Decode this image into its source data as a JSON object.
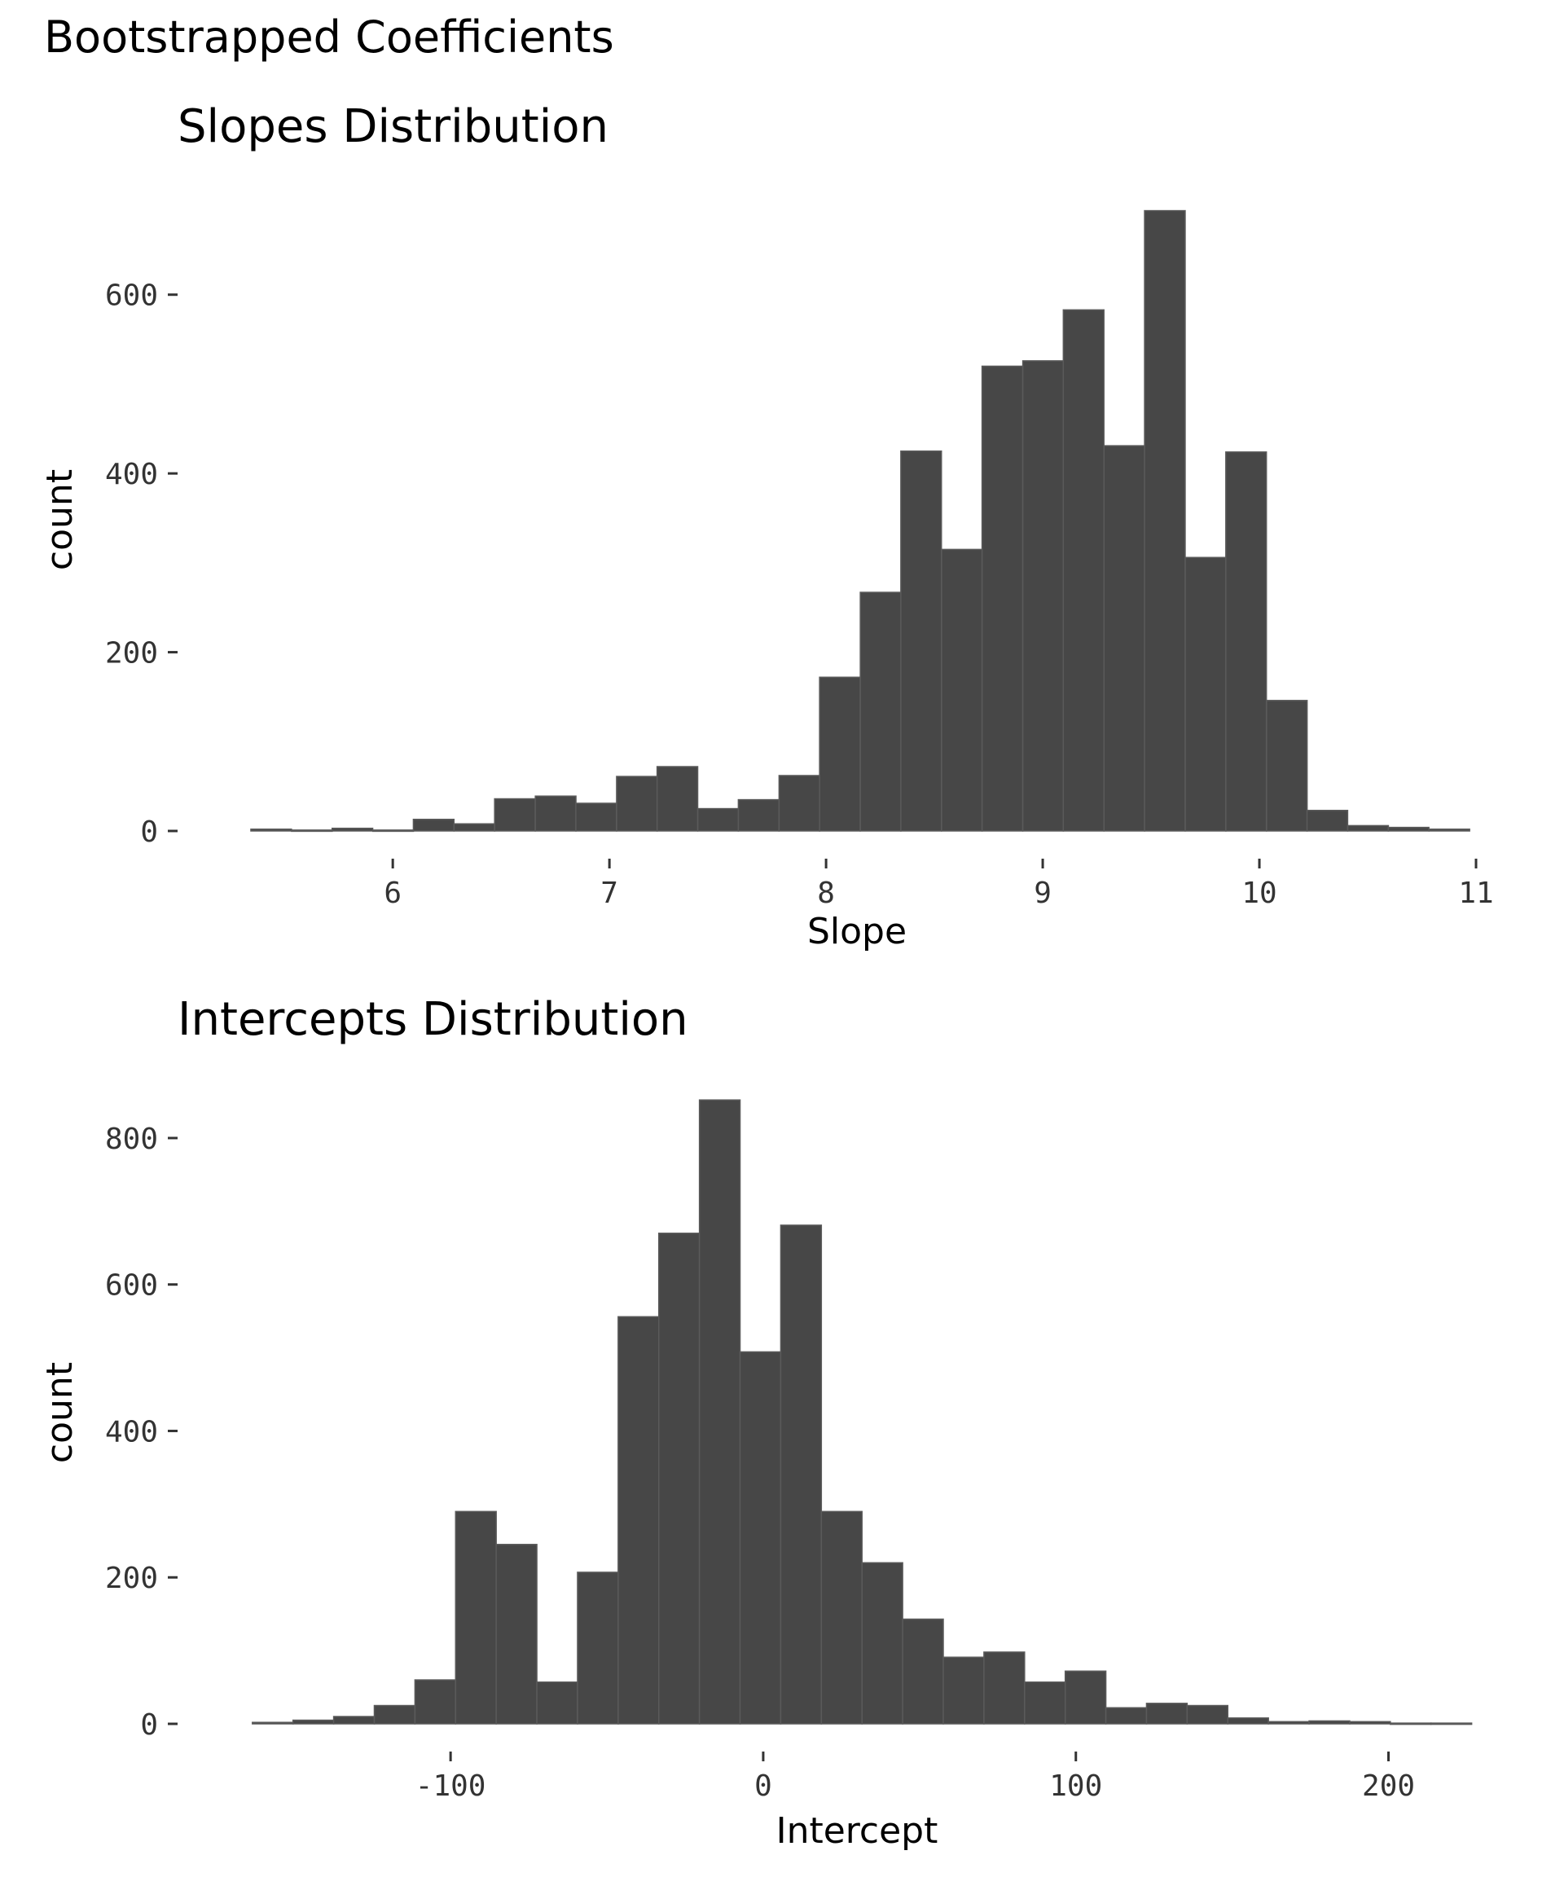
{
  "figure": {
    "title": "Bootstrapped Coefficients"
  },
  "colors": {
    "bar_fill": "#474747",
    "bar_edge": "#5a5a5a",
    "tick_text": "#333333"
  },
  "chart_data": [
    {
      "type": "bar",
      "title": "Slopes Distribution",
      "xlabel": "Slope",
      "ylabel": "count",
      "xlim": [
        5.3,
        11.0
      ],
      "ylim": [
        0,
        700
      ],
      "bin_width": 0.1875,
      "x_ticks": [
        6,
        7,
        8,
        9,
        10,
        11
      ],
      "x_tick_labels": [
        "6",
        "7",
        "8",
        "9",
        "10",
        "11"
      ],
      "y_ticks": [
        0,
        200,
        400,
        600
      ],
      "y_tick_labels": [
        "0",
        "200",
        "400",
        "600"
      ],
      "bin_starts": [
        5.345,
        5.533,
        5.72,
        5.908,
        6.095,
        6.283,
        6.47,
        6.658,
        6.845,
        7.033,
        7.22,
        7.408,
        7.595,
        7.783,
        7.97,
        8.158,
        8.345,
        8.533,
        8.72,
        8.908,
        9.095,
        9.283,
        9.47,
        9.658,
        9.845,
        10.033,
        10.22,
        10.408,
        10.595,
        10.783
      ],
      "values": [
        2,
        1,
        3,
        1,
        13,
        8,
        36,
        39,
        31,
        61,
        72,
        25,
        35,
        62,
        172,
        267,
        425,
        315,
        520,
        526,
        583,
        431,
        694,
        306,
        424,
        146,
        23,
        6,
        4,
        2
      ],
      "grid": false
    },
    {
      "type": "bar",
      "title": "Intercepts Distribution",
      "xlabel": "Intercept",
      "ylabel": "count",
      "xlim": [
        -167,
        228
      ],
      "ylim": [
        0,
        850
      ],
      "bin_width": 13.0,
      "x_ticks": [
        -100,
        0,
        100,
        200
      ],
      "x_tick_labels": [
        "-100",
        "0",
        "100",
        "200"
      ],
      "y_ticks": [
        0,
        200,
        400,
        600,
        800
      ],
      "y_tick_labels": [
        "0",
        "200",
        "400",
        "600",
        "800"
      ],
      "bin_starts": [
        -163.4,
        -150.4,
        -137.4,
        -124.4,
        -111.4,
        -98.4,
        -85.4,
        -72.4,
        -59.4,
        -46.4,
        -33.4,
        -20.4,
        -7.4,
        5.6,
        18.6,
        31.6,
        44.6,
        57.6,
        70.6,
        83.6,
        96.6,
        109.6,
        122.6,
        135.6,
        148.6,
        161.6,
        174.6,
        187.6,
        200.6,
        213.6
      ],
      "values": [
        2,
        5,
        10,
        25,
        60,
        290,
        245,
        57,
        207,
        556,
        670,
        852,
        508,
        681,
        290,
        220,
        143,
        91,
        98,
        57,
        72,
        22,
        28,
        25,
        8,
        3,
        4,
        3,
        1,
        1
      ],
      "grid": false
    }
  ]
}
